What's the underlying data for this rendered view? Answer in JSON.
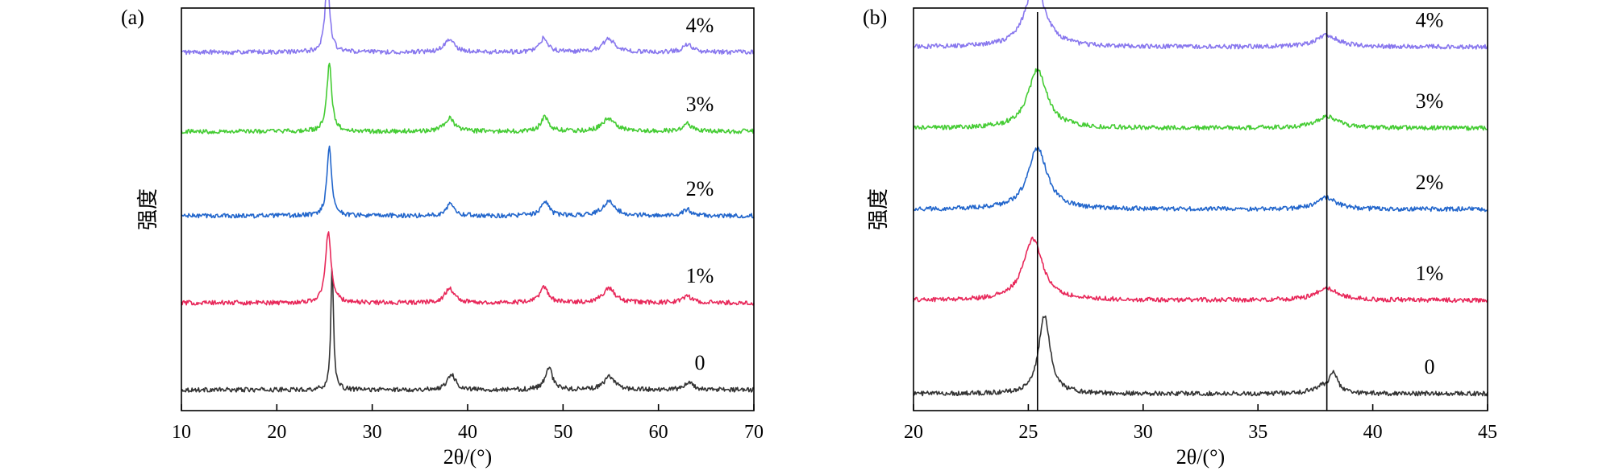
{
  "chart_data": [
    {
      "type": "line",
      "panel_label": "(a)",
      "xlabel": "2θ/(°)",
      "ylabel": "强度",
      "xlim": [
        10,
        70
      ],
      "xticks": [
        10,
        20,
        30,
        40,
        50,
        60,
        70
      ],
      "ylim": [
        0,
        6.2
      ],
      "yticks_visible": false,
      "grid": false,
      "series": [
        {
          "name": "0",
          "color": "#333333",
          "baseline": 0.32,
          "peaks": [
            [
              25.8,
              0.17,
              1.9
            ],
            [
              38.3,
              0.5,
              0.25
            ],
            [
              48.5,
              0.45,
              0.35
            ],
            [
              54.9,
              0.7,
              0.2
            ],
            [
              63.2,
              0.5,
              0.12
            ]
          ]
        },
        {
          "name": "1%",
          "color": "#e8285a",
          "baseline": 1.66,
          "peaks": [
            [
              25.4,
              0.35,
              1.1
            ],
            [
              38.1,
              0.6,
              0.22
            ],
            [
              48.0,
              0.5,
              0.25
            ],
            [
              54.8,
              0.8,
              0.22
            ],
            [
              63.0,
              0.6,
              0.1
            ]
          ]
        },
        {
          "name": "2%",
          "color": "#2266cc",
          "baseline": 3.0,
          "peaks": [
            [
              25.5,
              0.3,
              1.05
            ],
            [
              38.2,
              0.5,
              0.2
            ],
            [
              48.1,
              0.5,
              0.22
            ],
            [
              54.8,
              0.8,
              0.22
            ],
            [
              63.0,
              0.5,
              0.1
            ]
          ]
        },
        {
          "name": "3%",
          "color": "#44cc33",
          "baseline": 4.3,
          "peaks": [
            [
              25.5,
              0.3,
              1.05
            ],
            [
              38.1,
              0.6,
              0.2
            ],
            [
              48.1,
              0.5,
              0.22
            ],
            [
              54.8,
              0.8,
              0.2
            ],
            [
              63.0,
              0.6,
              0.12
            ]
          ]
        },
        {
          "name": "4%",
          "color": "#8877ee",
          "baseline": 5.52,
          "peaks": [
            [
              25.3,
              0.3,
              1.1
            ],
            [
              38.1,
              0.6,
              0.2
            ],
            [
              48.0,
              0.5,
              0.22
            ],
            [
              54.8,
              0.8,
              0.2
            ],
            [
              63.0,
              0.6,
              0.12
            ]
          ]
        }
      ]
    },
    {
      "type": "line",
      "panel_label": "(b)",
      "xlabel": "2θ/(°)",
      "ylabel": "强度",
      "xlim": [
        20,
        45
      ],
      "xticks": [
        20,
        25,
        30,
        35,
        40,
        45
      ],
      "ylim": [
        0,
        6.2
      ],
      "yticks_visible": false,
      "grid": false,
      "reference_lines_x": [
        25.4,
        38.0
      ],
      "series": [
        {
          "name": "0",
          "color": "#333333",
          "baseline": 0.26,
          "peaks": [
            [
              25.7,
              0.3,
              1.2
            ],
            [
              38.3,
              0.2,
              0.3
            ],
            [
              37.8,
              0.5,
              0.1
            ]
          ]
        },
        {
          "name": "1%",
          "color": "#e8285a",
          "baseline": 1.7,
          "peaks": [
            [
              25.2,
              0.5,
              0.95
            ],
            [
              38.0,
              0.6,
              0.18
            ]
          ]
        },
        {
          "name": "2%",
          "color": "#2266cc",
          "baseline": 3.1,
          "peaks": [
            [
              25.4,
              0.5,
              0.95
            ],
            [
              38.0,
              0.5,
              0.18
            ]
          ]
        },
        {
          "name": "3%",
          "color": "#44cc33",
          "baseline": 4.35,
          "peaks": [
            [
              25.4,
              0.5,
              0.9
            ],
            [
              38.0,
              0.6,
              0.18
            ]
          ]
        },
        {
          "name": "4%",
          "color": "#8877ee",
          "baseline": 5.6,
          "peaks": [
            [
              25.3,
              0.5,
              1.0
            ],
            [
              38.0,
              0.6,
              0.18
            ]
          ]
        }
      ]
    }
  ]
}
